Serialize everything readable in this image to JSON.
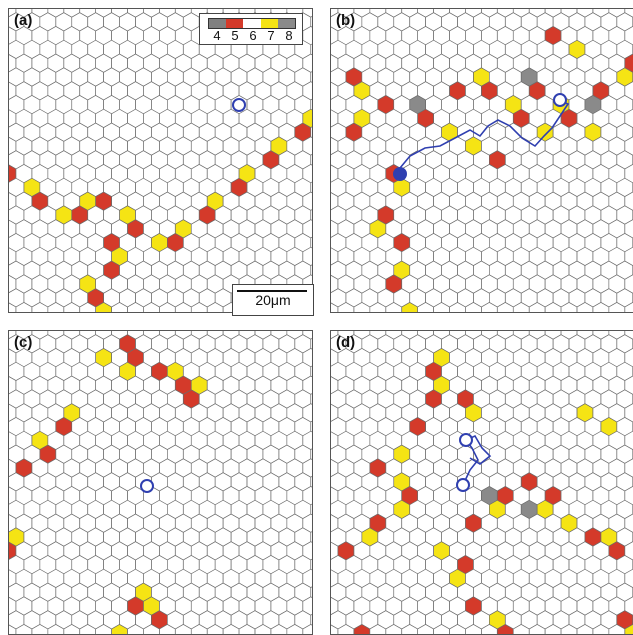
{
  "panels": [
    {
      "label": "(a)"
    },
    {
      "label": "(b)"
    },
    {
      "label": "(c)"
    },
    {
      "label": "(d)"
    }
  ],
  "legend": {
    "numbers": [
      "4",
      "5",
      "6",
      "7",
      "8"
    ],
    "colors": [
      "#808080",
      "#d43a2a",
      "#ffffff",
      "#f5e414",
      "#8a8a8a"
    ]
  },
  "scale_bar": {
    "label": "20μm"
  },
  "colors": {
    "cell_edge": "#6b6b6b",
    "red": "#d43a2a",
    "yellow": "#f5e414",
    "gray": "#8a8a8a",
    "trajectory": "#2f3fb0"
  }
}
